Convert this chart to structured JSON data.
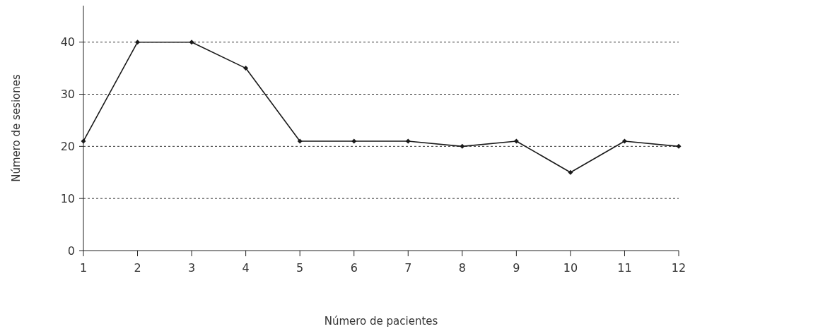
{
  "chart_data": {
    "type": "line",
    "xlabel": "Número de pacientes",
    "ylabel": "Número de sesiones",
    "x": [
      1,
      2,
      3,
      4,
      5,
      6,
      7,
      8,
      9,
      10,
      11,
      12
    ],
    "series": [
      {
        "color": "#1a1a1a",
        "values": [
          21,
          40,
          40,
          35,
          21,
          21,
          21,
          20,
          21,
          15,
          21,
          20
        ]
      }
    ],
    "xlim": [
      1,
      12
    ],
    "xticks": [
      1,
      2,
      3,
      4,
      5,
      6,
      7,
      8,
      9,
      10,
      11,
      12
    ],
    "ylim": [
      0,
      47
    ],
    "yticks": [
      0,
      10,
      20,
      30,
      40
    ],
    "grid": "y",
    "marker": "diamond",
    "line_style": "solid"
  }
}
